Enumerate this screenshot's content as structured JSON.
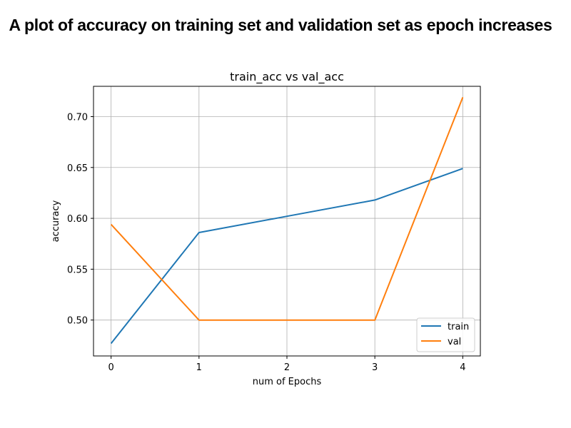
{
  "heading": "A plot of accuracy on training set and validation set as epoch increases",
  "chart_data": {
    "type": "line",
    "title": "train_acc vs val_acc",
    "xlabel": "num of Epochs",
    "ylabel": "accuracy",
    "x": [
      0,
      1,
      2,
      3,
      4
    ],
    "xticks": [
      "0",
      "1",
      "2",
      "3",
      "4"
    ],
    "yticks": [
      "0.50",
      "0.55",
      "0.60",
      "0.65",
      "0.70"
    ],
    "xlim": [
      -0.2,
      4.2
    ],
    "ylim": [
      0.4647,
      0.7298
    ],
    "grid": true,
    "legend_position": "lower right",
    "series": [
      {
        "name": "train",
        "color": "#1f77b4",
        "values": [
          0.477,
          0.586,
          0.602,
          0.618,
          0.649
        ]
      },
      {
        "name": "val",
        "color": "#ff7f0e",
        "values": [
          0.594,
          0.5,
          0.5,
          0.5,
          0.719
        ]
      }
    ]
  }
}
